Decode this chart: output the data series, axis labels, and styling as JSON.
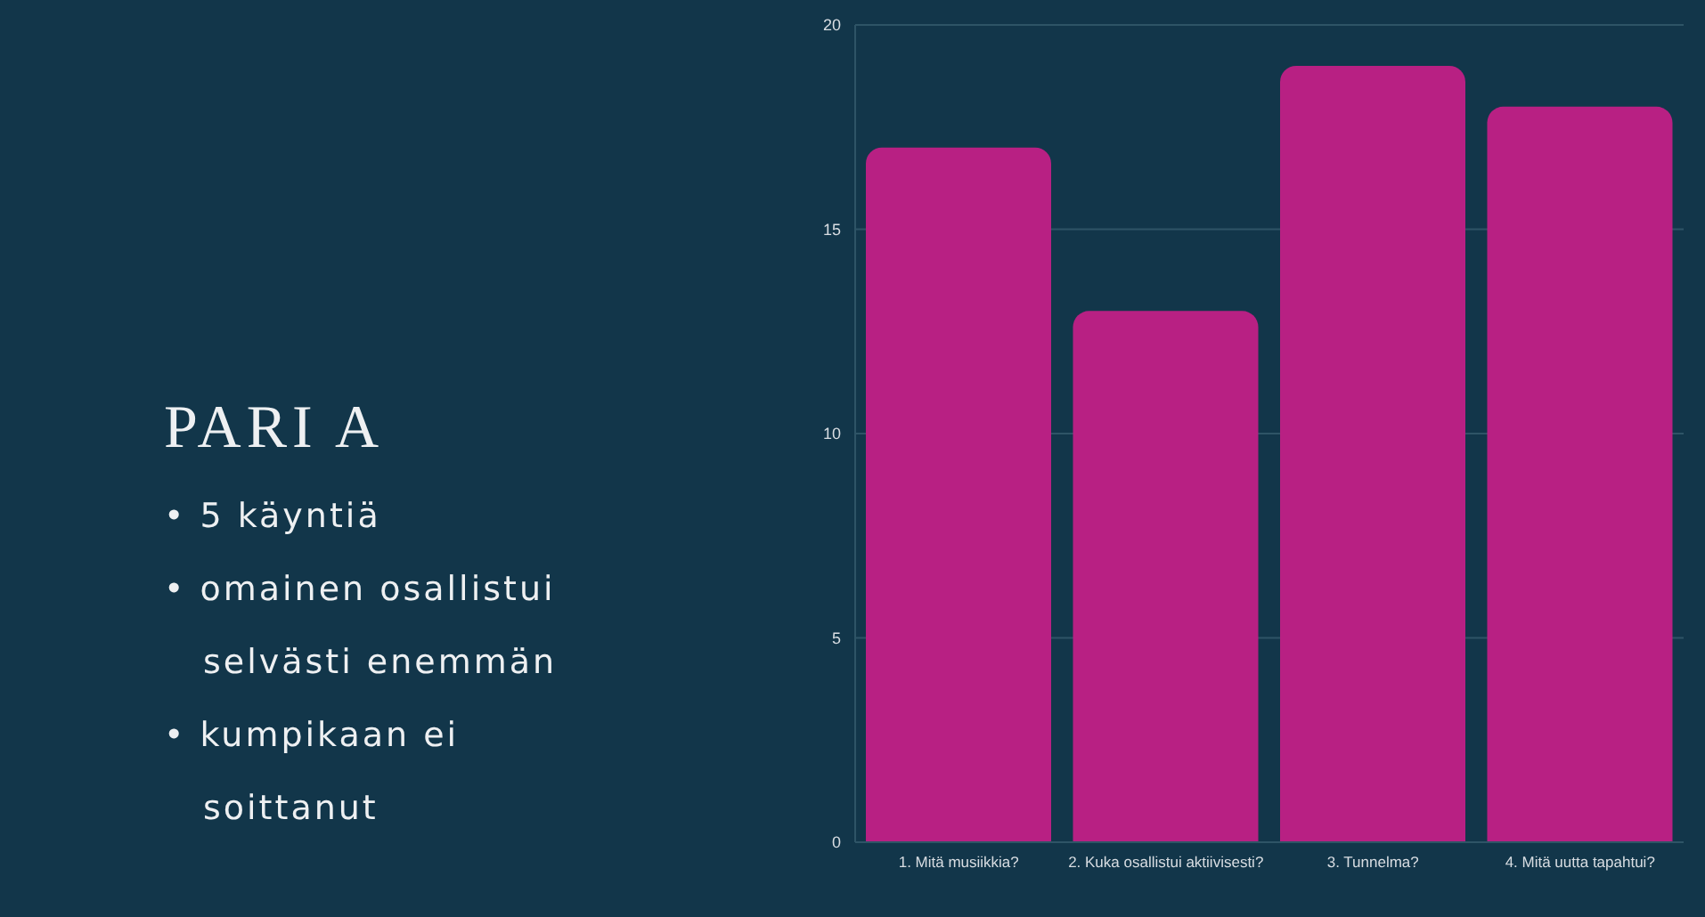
{
  "chart_data": {
    "type": "bar",
    "title": "PARI A",
    "annotations": [
      "• 5 käyntiä",
      "• omainen osallistui selvästi enemmän",
      "• kumpikaan ei soittanut"
    ],
    "categories": [
      "1. Mitä musiikkia?",
      "2. Kuka osallistui aktiivisesti?",
      "3. Tunnelma?",
      "4. Mitä uutta tapahtui?"
    ],
    "values": [
      17,
      13,
      19,
      18
    ],
    "color": "#b82083",
    "ylim": [
      0,
      20
    ],
    "yticks": [
      0,
      5,
      10,
      15,
      20
    ],
    "grid": "y"
  }
}
